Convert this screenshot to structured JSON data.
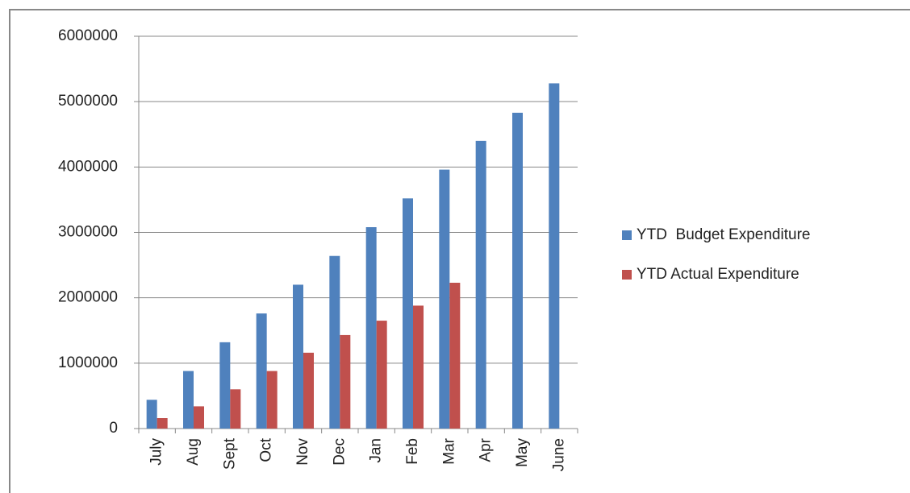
{
  "chart_data": {
    "type": "bar",
    "categories": [
      "July",
      "Aug",
      "Sept",
      "Oct",
      "Nov",
      "Dec",
      "Jan",
      "Feb",
      "Mar",
      "Apr",
      "May",
      "June"
    ],
    "series": [
      {
        "name": "YTD  Budget Expenditure",
        "color": "#4f81bd",
        "values": [
          440000,
          880000,
          1320000,
          1760000,
          2200000,
          2640000,
          3080000,
          3520000,
          3960000,
          4400000,
          4830000,
          5280000
        ]
      },
      {
        "name": "YTD Actual Expenditure",
        "color": "#c0504d",
        "values": [
          160000,
          340000,
          600000,
          880000,
          1160000,
          1430000,
          1650000,
          1880000,
          2230000,
          null,
          null,
          null
        ]
      }
    ],
    "ylim": [
      0,
      6000000
    ],
    "yticks": [
      0,
      1000000,
      2000000,
      3000000,
      4000000,
      5000000,
      6000000
    ],
    "grid": true,
    "legend": "right"
  }
}
